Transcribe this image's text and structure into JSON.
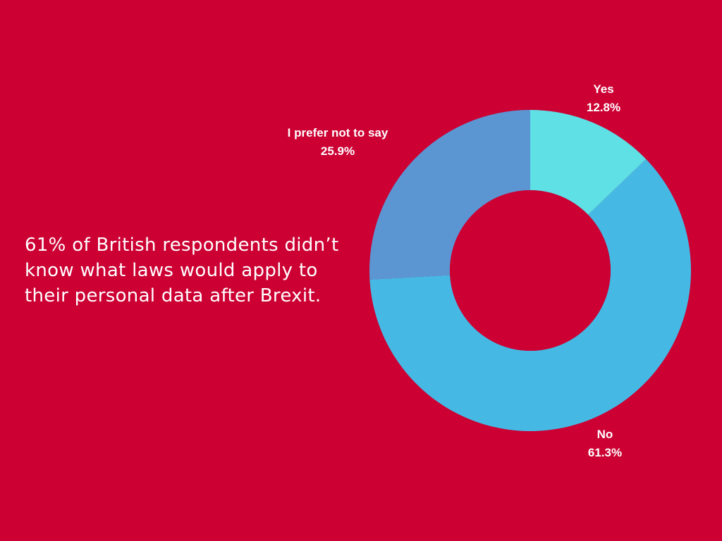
{
  "background_color": "#cc0033",
  "headline": "61% of British respondents didn’t\nknow what laws would apply to\ntheir personal data after Brexit.",
  "chart_data": {
    "type": "pie",
    "hole": true,
    "slices": [
      {
        "label": "Yes",
        "value": 12.8,
        "value_label": "12.8%",
        "color": "#5ee0e5"
      },
      {
        "label": "No",
        "value": 61.3,
        "value_label": "61.3%",
        "color": "#45b9e4"
      },
      {
        "label": "I prefer not to say",
        "value": 25.9,
        "value_label": "25.9%",
        "color": "#5b96d3"
      }
    ],
    "start": "top",
    "direction": "clockwise"
  }
}
